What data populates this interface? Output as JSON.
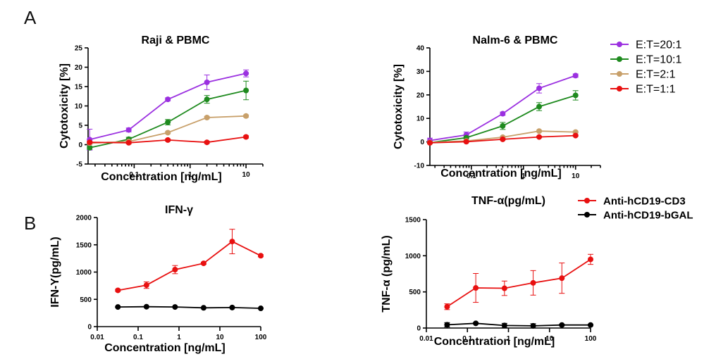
{
  "panel_labels": {
    "a": "A",
    "b": "B"
  },
  "legend_a": [
    {
      "label": "E:T=20:1",
      "color": "#9b30e0"
    },
    {
      "label": "E:T=10:1",
      "color": "#1e8a1e"
    },
    {
      "label": "E:T=2:1",
      "color": "#c8a06a"
    },
    {
      "label": "E:T=1:1",
      "color": "#e81010"
    }
  ],
  "legend_b": [
    {
      "label": "Anti-hCD19-CD3",
      "color": "#e81010"
    },
    {
      "label": "Anti-hCD19-bGAL",
      "color": "#000000"
    }
  ],
  "chart_data": [
    {
      "type": "line",
      "title": "Raji & PBMC",
      "xlabel": "Concentration [ng/mL]",
      "ylabel": "Cytotoxicity [%]",
      "xscale": "log",
      "xlim": [
        0.015,
        20
      ],
      "ylim": [
        -5,
        25
      ],
      "yticks": [
        -5,
        0,
        5,
        10,
        15,
        20,
        25
      ],
      "xticks": [
        0.1,
        1,
        10
      ],
      "xtick_labels": [
        "0.1",
        "1",
        "10"
      ],
      "x": [
        0.016,
        0.08,
        0.4,
        2,
        10
      ],
      "series": [
        {
          "name": "E:T=20:1",
          "color": "#9b30e0",
          "values": [
            1.3,
            3.8,
            11.7,
            16.1,
            18.4
          ],
          "errors": [
            2.7,
            0.5,
            0.4,
            1.9,
            0.9
          ]
        },
        {
          "name": "E:T=10:1",
          "color": "#1e8a1e",
          "values": [
            -0.8,
            1.4,
            5.8,
            11.7,
            14.0
          ],
          "errors": [
            0.4,
            0.5,
            0.7,
            1.0,
            2.4
          ]
        },
        {
          "name": "E:T=2:1",
          "color": "#c8a06a",
          "values": [
            0.4,
            0.8,
            3.1,
            7.0,
            7.4
          ],
          "errors": [
            0.3,
            0.3,
            0.3,
            0.3,
            0.3
          ]
        },
        {
          "name": "E:T=1:1",
          "color": "#e81010",
          "values": [
            0.6,
            0.5,
            1.2,
            0.6,
            2.0
          ],
          "errors": [
            0.3,
            0.3,
            0.3,
            0.3,
            0.3
          ]
        }
      ]
    },
    {
      "type": "line",
      "title": "Nalm-6 & PBMC",
      "xlabel": "Concentration [ng/mL]",
      "ylabel": "Cytotoxicity [%]",
      "xscale": "log",
      "xlim": [
        0.016,
        30
      ],
      "ylim": [
        -10,
        40
      ],
      "yticks": [
        -10,
        0,
        10,
        20,
        30,
        40
      ],
      "xticks": [
        0.1,
        1,
        10
      ],
      "xtick_labels": [
        "0.1",
        "1",
        "10"
      ],
      "x": [
        0.016,
        0.08,
        0.4,
        2,
        10
      ],
      "series": [
        {
          "name": "E:T=20:1",
          "color": "#9b30e0",
          "values": [
            0.6,
            3.0,
            12.0,
            22.8,
            28.2
          ],
          "errors": [
            1.0,
            1.2,
            0.7,
            2.0,
            0.7
          ]
        },
        {
          "name": "E:T=10:1",
          "color": "#1e8a1e",
          "values": [
            -0.3,
            1.8,
            6.8,
            15.0,
            19.8
          ],
          "errors": [
            0.5,
            0.5,
            1.5,
            1.7,
            2.0
          ]
        },
        {
          "name": "E:T=2:1",
          "color": "#c8a06a",
          "values": [
            -0.2,
            0.4,
            2.0,
            4.6,
            4.2
          ],
          "errors": [
            0.3,
            0.3,
            0.3,
            0.4,
            0.4
          ]
        },
        {
          "name": "E:T=1:1",
          "color": "#e81010",
          "values": [
            -0.4,
            0.1,
            1.1,
            2.1,
            2.7
          ],
          "errors": [
            0.3,
            0.3,
            0.3,
            0.3,
            0.3
          ]
        }
      ]
    },
    {
      "type": "line",
      "title": "IFN-γ",
      "xlabel": "Concentration [ng/mL]",
      "ylabel": "IFN-Υ(pg/mL)",
      "xscale": "log",
      "xlim": [
        0.01,
        100
      ],
      "ylim": [
        0,
        2000
      ],
      "yticks": [
        0,
        500,
        1000,
        1500,
        2000
      ],
      "xticks": [
        0.01,
        0.1,
        1,
        10,
        100
      ],
      "xtick_labels": [
        "0.01",
        "0.1",
        "1",
        "10",
        "100"
      ],
      "x": [
        0.032,
        0.16,
        0.8,
        4,
        20,
        100
      ],
      "series": [
        {
          "name": "Anti-hCD19-CD3",
          "color": "#e81010",
          "values": [
            665,
            760,
            1045,
            1160,
            1560,
            1300
          ],
          "errors": [
            20,
            60,
            75,
            20,
            225,
            20
          ]
        },
        {
          "name": "Anti-hCD19-bGAL",
          "color": "#000000",
          "values": [
            360,
            365,
            360,
            345,
            350,
            335
          ],
          "errors": [
            5,
            5,
            5,
            5,
            5,
            5
          ]
        }
      ]
    },
    {
      "type": "line",
      "title": "TNF-α(pg/mL)",
      "xlabel": "Concentration [ng/mL]",
      "ylabel": "TNF-α (pg/mL)",
      "xscale": "log",
      "xlim": [
        0.01,
        100
      ],
      "ylim": [
        0,
        1500
      ],
      "yticks": [
        0,
        500,
        1000,
        1500
      ],
      "xticks": [
        0.01,
        0.1,
        1,
        10,
        100
      ],
      "xtick_labels": [
        "0.01",
        "0.1",
        "1",
        "10",
        "100"
      ],
      "x": [
        0.032,
        0.16,
        0.8,
        4,
        20,
        100
      ],
      "series": [
        {
          "name": "Anti-hCD19-CD3",
          "color": "#e81010",
          "values": [
            295,
            555,
            550,
            625,
            690,
            950
          ],
          "errors": [
            40,
            200,
            100,
            170,
            210,
            70
          ]
        },
        {
          "name": "Anti-hCD19-bGAL",
          "color": "#000000",
          "values": [
            45,
            65,
            35,
            30,
            42,
            42
          ],
          "errors": [
            30,
            10,
            30,
            30,
            10,
            10
          ]
        }
      ]
    }
  ]
}
